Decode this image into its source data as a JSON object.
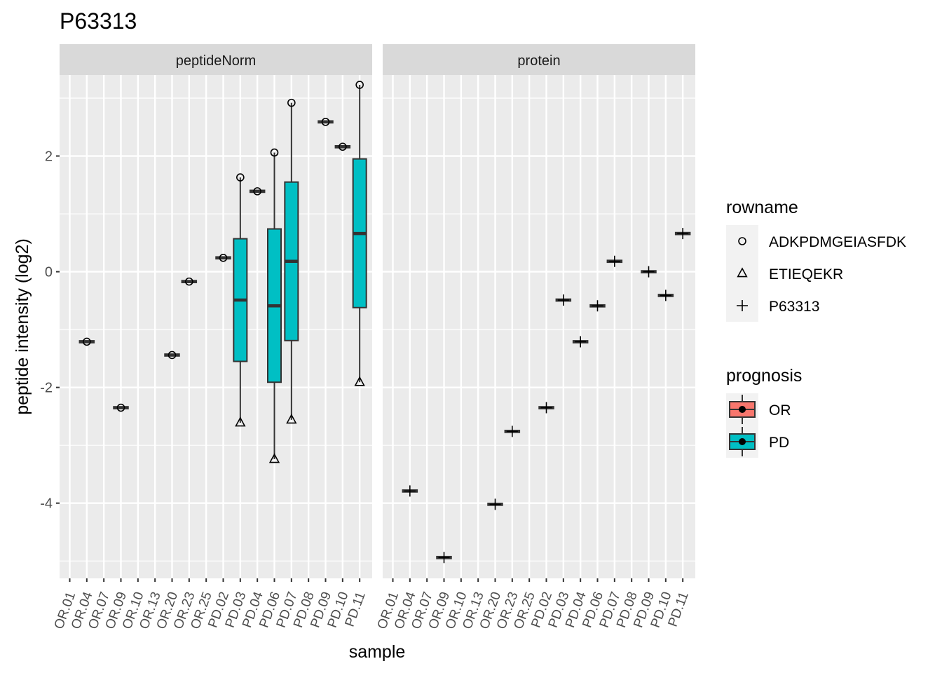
{
  "chart_data": {
    "type": "boxplot",
    "title": "P63313",
    "xlabel": "sample",
    "ylabel": "peptide intensity (log2)",
    "ylim": [
      -5.3,
      3.4
    ],
    "y_ticks": [
      -4,
      -2,
      0,
      2
    ],
    "y_tick_labels": [
      "-4",
      "-2",
      "0",
      "2"
    ],
    "x_categories": [
      "OR.01",
      "OR.04",
      "OR.07",
      "OR.09",
      "OR.10",
      "OR.13",
      "OR.20",
      "OR.23",
      "OR.25",
      "PD.02",
      "PD.03",
      "PD.04",
      "PD.06",
      "PD.07",
      "PD.08",
      "PD.09",
      "PD.10",
      "PD.11"
    ],
    "grid": true,
    "legend_position": "right",
    "colors": {
      "OR": "#F8766D",
      "PD": "#00BFC4",
      "panel_bg": "#EBEBEB",
      "strip_bg": "#D9D9D9",
      "grid": "#FFFFFF",
      "box_line": "#333333"
    },
    "facets": [
      {
        "strip_label": "peptideNorm",
        "points": [
          {
            "sample": "OR.04",
            "y": -1.21,
            "shape": "circle"
          },
          {
            "sample": "OR.09",
            "y": -2.35,
            "shape": "circle"
          },
          {
            "sample": "OR.20",
            "y": -1.44,
            "shape": "circle"
          },
          {
            "sample": "OR.23",
            "y": -0.17,
            "shape": "circle"
          },
          {
            "sample": "PD.02",
            "y": 0.24,
            "shape": "circle"
          },
          {
            "sample": "PD.03",
            "y": 1.63,
            "shape": "circle"
          },
          {
            "sample": "PD.03",
            "y": -2.61,
            "shape": "triangle"
          },
          {
            "sample": "PD.04",
            "y": 1.39,
            "shape": "circle"
          },
          {
            "sample": "PD.06",
            "y": 2.06,
            "shape": "circle"
          },
          {
            "sample": "PD.06",
            "y": -3.24,
            "shape": "triangle"
          },
          {
            "sample": "PD.07",
            "y": 2.92,
            "shape": "circle"
          },
          {
            "sample": "PD.07",
            "y": -2.56,
            "shape": "triangle"
          },
          {
            "sample": "PD.09",
            "y": 2.59,
            "shape": "circle"
          },
          {
            "sample": "PD.10",
            "y": 2.16,
            "shape": "circle"
          },
          {
            "sample": "PD.11",
            "y": 3.23,
            "shape": "circle"
          },
          {
            "sample": "PD.11",
            "y": -1.91,
            "shape": "triangle"
          }
        ],
        "boxes": [
          {
            "sample": "OR.04",
            "prognosis": "OR",
            "min": -1.21,
            "q1": -1.21,
            "median": -1.21,
            "q3": -1.21,
            "max": -1.21
          },
          {
            "sample": "OR.09",
            "prognosis": "OR",
            "min": -2.35,
            "q1": -2.35,
            "median": -2.35,
            "q3": -2.35,
            "max": -2.35
          },
          {
            "sample": "OR.20",
            "prognosis": "OR",
            "min": -1.44,
            "q1": -1.44,
            "median": -1.44,
            "q3": -1.44,
            "max": -1.44
          },
          {
            "sample": "OR.23",
            "prognosis": "OR",
            "min": -0.17,
            "q1": -0.17,
            "median": -0.17,
            "q3": -0.17,
            "max": -0.17
          },
          {
            "sample": "PD.02",
            "prognosis": "PD",
            "min": 0.24,
            "q1": 0.24,
            "median": 0.24,
            "q3": 0.24,
            "max": 0.24
          },
          {
            "sample": "PD.03",
            "prognosis": "PD",
            "min": -2.61,
            "q1": -1.55,
            "median": -0.49,
            "q3": 0.57,
            "max": 1.63
          },
          {
            "sample": "PD.04",
            "prognosis": "PD",
            "min": 1.39,
            "q1": 1.39,
            "median": 1.39,
            "q3": 1.39,
            "max": 1.39
          },
          {
            "sample": "PD.06",
            "prognosis": "PD",
            "min": -3.24,
            "q1": -1.91,
            "median": -0.59,
            "q3": 0.74,
            "max": 2.06
          },
          {
            "sample": "PD.07",
            "prognosis": "PD",
            "min": -2.56,
            "q1": -1.19,
            "median": 0.18,
            "q3": 1.55,
            "max": 2.92
          },
          {
            "sample": "PD.09",
            "prognosis": "PD",
            "min": 2.59,
            "q1": 2.59,
            "median": 2.59,
            "q3": 2.59,
            "max": 2.59
          },
          {
            "sample": "PD.10",
            "prognosis": "PD",
            "min": 2.16,
            "q1": 2.16,
            "median": 2.16,
            "q3": 2.16,
            "max": 2.16
          },
          {
            "sample": "PD.11",
            "prognosis": "PD",
            "min": -1.91,
            "q1": -0.62,
            "median": 0.66,
            "q3": 1.95,
            "max": 3.23
          }
        ]
      },
      {
        "strip_label": "protein",
        "points": [
          {
            "sample": "OR.04",
            "y": -3.79,
            "shape": "plus"
          },
          {
            "sample": "OR.09",
            "y": -4.94,
            "shape": "plus"
          },
          {
            "sample": "OR.20",
            "y": -4.02,
            "shape": "plus"
          },
          {
            "sample": "OR.23",
            "y": -2.76,
            "shape": "plus"
          },
          {
            "sample": "PD.02",
            "y": -2.35,
            "shape": "plus"
          },
          {
            "sample": "PD.03",
            "y": -0.49,
            "shape": "plus"
          },
          {
            "sample": "PD.04",
            "y": -1.21,
            "shape": "plus"
          },
          {
            "sample": "PD.06",
            "y": -0.59,
            "shape": "plus"
          },
          {
            "sample": "PD.07",
            "y": 0.18,
            "shape": "plus"
          },
          {
            "sample": "PD.09",
            "y": 0.0,
            "shape": "plus"
          },
          {
            "sample": "PD.10",
            "y": -0.41,
            "shape": "plus"
          },
          {
            "sample": "PD.11",
            "y": 0.66,
            "shape": "plus"
          }
        ],
        "boxes": [
          {
            "sample": "OR.04",
            "prognosis": "OR",
            "min": -3.79,
            "q1": -3.79,
            "median": -3.79,
            "q3": -3.79,
            "max": -3.79
          },
          {
            "sample": "OR.09",
            "prognosis": "OR",
            "min": -4.94,
            "q1": -4.94,
            "median": -4.94,
            "q3": -4.94,
            "max": -4.94
          },
          {
            "sample": "OR.20",
            "prognosis": "OR",
            "min": -4.02,
            "q1": -4.02,
            "median": -4.02,
            "q3": -4.02,
            "max": -4.02
          },
          {
            "sample": "OR.23",
            "prognosis": "OR",
            "min": -2.76,
            "q1": -2.76,
            "median": -2.76,
            "q3": -2.76,
            "max": -2.76
          },
          {
            "sample": "PD.02",
            "prognosis": "PD",
            "min": -2.35,
            "q1": -2.35,
            "median": -2.35,
            "q3": -2.35,
            "max": -2.35
          },
          {
            "sample": "PD.03",
            "prognosis": "PD",
            "min": -0.49,
            "q1": -0.49,
            "median": -0.49,
            "q3": -0.49,
            "max": -0.49
          },
          {
            "sample": "PD.04",
            "prognosis": "PD",
            "min": -1.21,
            "q1": -1.21,
            "median": -1.21,
            "q3": -1.21,
            "max": -1.21
          },
          {
            "sample": "PD.06",
            "prognosis": "PD",
            "min": -0.59,
            "q1": -0.59,
            "median": -0.59,
            "q3": -0.59,
            "max": -0.59
          },
          {
            "sample": "PD.07",
            "prognosis": "PD",
            "min": 0.18,
            "q1": 0.18,
            "median": 0.18,
            "q3": 0.18,
            "max": 0.18
          },
          {
            "sample": "PD.09",
            "prognosis": "PD",
            "min": 0.0,
            "q1": 0.0,
            "median": 0.0,
            "q3": 0.0,
            "max": 0.0
          },
          {
            "sample": "PD.10",
            "prognosis": "PD",
            "min": -0.41,
            "q1": -0.41,
            "median": -0.41,
            "q3": -0.41,
            "max": -0.41
          },
          {
            "sample": "PD.11",
            "prognosis": "PD",
            "min": 0.66,
            "q1": 0.66,
            "median": 0.66,
            "q3": 0.66,
            "max": 0.66
          }
        ]
      }
    ],
    "legends": [
      {
        "title": "rowname",
        "items": [
          {
            "label": "ADKPDMGEIASFDK",
            "shape": "circle"
          },
          {
            "label": "ETIEQEKR",
            "shape": "triangle"
          },
          {
            "label": "P63313",
            "shape": "plus"
          }
        ]
      },
      {
        "title": "prognosis",
        "items": [
          {
            "label": "OR",
            "fill": "OR"
          },
          {
            "label": "PD",
            "fill": "PD"
          }
        ]
      }
    ]
  }
}
